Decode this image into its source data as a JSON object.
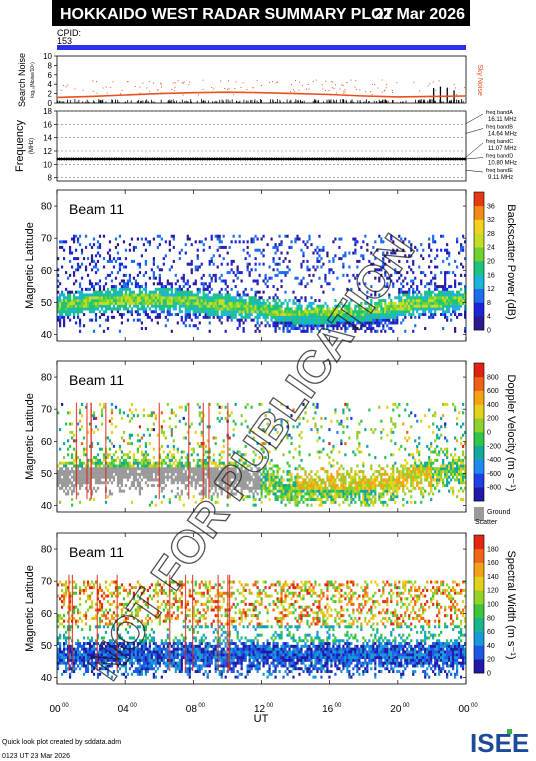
{
  "header": {
    "title": "HOKKAIDO WEST RADAR SUMMARY PLOT",
    "date": "22 Mar 2026",
    "cpid_label": "CPID:",
    "cpid_value": "153"
  },
  "watermark": "NOT FOR PUBLICATION",
  "noise_panel": {
    "ylabel": "Search Noise",
    "ylabel_sub": "log₁₀(Noise/10⁶)",
    "yticks": [
      "0",
      "2",
      "4",
      "6",
      "8",
      "10"
    ],
    "legend": "Sky Noise"
  },
  "freq_panel": {
    "ylabel": "Frequency",
    "ylabel_unit": "(MHz)",
    "yticks": [
      "8",
      "10",
      "12",
      "14",
      "16",
      "18"
    ],
    "bands": [
      {
        "label": "freq bandA",
        "value": "16.11 MHz"
      },
      {
        "label": "freq bandB",
        "value": "14.64 MHz"
      },
      {
        "label": "freq bandC",
        "value": "11.07 MHz"
      },
      {
        "label": "freq bandD",
        "value": "10.80 MHz"
      },
      {
        "label": "freq bandE",
        "value": "9.11 MHz"
      }
    ]
  },
  "panels": [
    {
      "beam": "Beam 11",
      "ylabel": "Magnetic Latitude",
      "yticks": [
        "40",
        "50",
        "60",
        "70",
        "80"
      ],
      "cbar_label": "Backscatter Power (dB)",
      "cbar_ticks": [
        "0",
        "4",
        "8",
        "12",
        "16",
        "20",
        "24",
        "28",
        "32",
        "36"
      ]
    },
    {
      "beam": "Beam 11",
      "ylabel": "Magnetic Latitude",
      "yticks": [
        "40",
        "50",
        "60",
        "70",
        "80"
      ],
      "cbar_label": "Doppler Velocity (m s⁻¹)",
      "cbar_ticks": [
        "-800",
        "-600",
        "-400",
        "-200",
        "0",
        "200",
        "400",
        "600",
        "800"
      ],
      "ground_label_1": "Ground",
      "ground_label_2": "Scatter"
    },
    {
      "beam": "Beam 11",
      "ylabel": "Magnetic Latitude",
      "yticks": [
        "40",
        "50",
        "60",
        "70",
        "80"
      ],
      "cbar_label": "Spectral Width (m s⁻¹)",
      "cbar_ticks": [
        "0",
        "20",
        "40",
        "60",
        "80",
        "100",
        "120",
        "140",
        "160",
        "180"
      ]
    }
  ],
  "xaxis": {
    "ticks": [
      "00",
      "04",
      "08",
      "12",
      "16",
      "20",
      "00"
    ],
    "tick_sup": "00",
    "label": "UT"
  },
  "footer": {
    "line1": "Quick look plot created by sddata.adm",
    "line2": "0123 UT 23 Mar 2026",
    "logo": "ISEE"
  },
  "colors": {
    "cpid_bar": "#2e2ef0",
    "noise_line": "#e8501e",
    "ground_scatter": "#9a9a9a"
  },
  "chart_data": [
    {
      "type": "line",
      "title": "Search Noise",
      "x_unit": "UT hours",
      "xlim": [
        0,
        24
      ],
      "ylim": [
        0,
        10
      ],
      "series": [
        {
          "name": "Sky Noise",
          "x": [
            0,
            2,
            4,
            6,
            8,
            10,
            12,
            14,
            16,
            18,
            20,
            22,
            24
          ],
          "values": [
            1.2,
            1.4,
            1.7,
            2.0,
            2.2,
            2.3,
            2.2,
            2.0,
            1.8,
            1.5,
            1.3,
            1.4,
            1.5
          ]
        }
      ]
    },
    {
      "type": "line",
      "title": "Frequency",
      "xlim": [
        0,
        24
      ],
      "ylim": [
        7.5,
        18
      ],
      "series": [
        {
          "x": [
            0,
            24
          ],
          "values": [
            10.8,
            10.8
          ]
        }
      ]
    },
    {
      "type": "heatmap",
      "title": "Backscatter Power (dB)",
      "xlim": [
        0,
        24
      ],
      "ylim": [
        38,
        85
      ],
      "zlim": [
        0,
        36
      ]
    },
    {
      "type": "heatmap",
      "title": "Doppler Velocity (m s⁻¹)",
      "xlim": [
        0,
        24
      ],
      "ylim": [
        38,
        85
      ],
      "zlim": [
        -800,
        800
      ]
    },
    {
      "type": "heatmap",
      "title": "Spectral Width (m s⁻¹)",
      "xlim": [
        0,
        24
      ],
      "ylim": [
        38,
        85
      ],
      "zlim": [
        0,
        180
      ]
    }
  ]
}
